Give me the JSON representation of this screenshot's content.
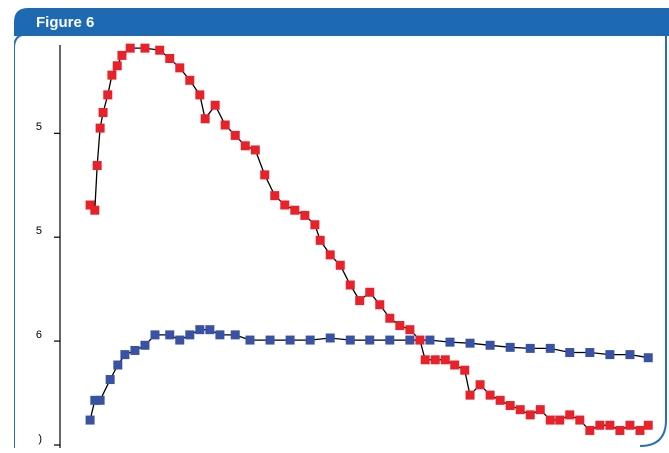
{
  "header": {
    "title": "Figure 6"
  },
  "chart_data": {
    "type": "scatter",
    "xlim": [
      0,
      100
    ],
    "ylim": [
      0,
      3.85
    ],
    "yticks": [
      {
        "value": 0,
        "label": ")"
      },
      {
        "value": 1,
        "label": "6"
      },
      {
        "value": 2,
        "label": "5"
      },
      {
        "value": 3,
        "label": "5"
      }
    ],
    "series": [
      {
        "color": "#e8212a",
        "x": [
          5.1,
          5.9,
          6.3,
          6.8,
          7.3,
          8.1,
          8.8,
          9.7,
          10.5,
          11.9,
          14.4,
          16.9,
          18.6,
          20.3,
          22.0,
          23.7,
          24.6,
          26.3,
          28.0,
          29.7,
          31.4,
          33.1,
          34.7,
          36.4,
          38.1,
          39.8,
          41.5,
          43.2,
          44.1,
          45.8,
          47.5,
          49.2,
          50.8,
          52.5,
          54.2,
          55.9,
          57.6,
          59.3,
          61.0,
          61.9,
          63.6,
          65.3,
          66.9,
          68.6,
          69.5,
          71.2,
          72.9,
          74.6,
          76.3,
          78.0,
          79.7,
          81.4,
          83.1,
          84.7,
          86.4,
          88.1,
          89.8,
          91.5,
          93.2,
          94.9,
          96.6,
          98.3,
          99.7
        ],
        "values": [
          2.31,
          2.26,
          2.69,
          3.05,
          3.2,
          3.37,
          3.56,
          3.65,
          3.75,
          3.82,
          3.82,
          3.8,
          3.72,
          3.63,
          3.51,
          3.37,
          3.14,
          3.27,
          3.08,
          2.98,
          2.88,
          2.84,
          2.6,
          2.4,
          2.31,
          2.26,
          2.21,
          2.12,
          1.97,
          1.83,
          1.73,
          1.54,
          1.39,
          1.47,
          1.35,
          1.22,
          1.15,
          1.11,
          1.01,
          0.82,
          0.82,
          0.82,
          0.77,
          0.72,
          0.48,
          0.58,
          0.48,
          0.43,
          0.38,
          0.34,
          0.29,
          0.34,
          0.24,
          0.24,
          0.29,
          0.24,
          0.14,
          0.19,
          0.19,
          0.14,
          0.19,
          0.14,
          0.19
        ]
      },
      {
        "color": "#3a52a4",
        "x": [
          5.1,
          5.9,
          6.8,
          8.5,
          9.8,
          11.0,
          12.7,
          14.4,
          16.1,
          18.6,
          20.3,
          22.0,
          23.7,
          25.4,
          27.1,
          29.7,
          32.2,
          35.6,
          39.0,
          42.4,
          45.8,
          49.2,
          52.5,
          55.9,
          59.3,
          62.7,
          66.1,
          69.5,
          72.9,
          76.3,
          79.7,
          83.1,
          86.4,
          89.8,
          93.2,
          96.6,
          99.7
        ],
        "values": [
          0.24,
          0.43,
          0.43,
          0.63,
          0.77,
          0.87,
          0.91,
          0.96,
          1.06,
          1.06,
          1.01,
          1.06,
          1.11,
          1.11,
          1.06,
          1.06,
          1.01,
          1.01,
          1.01,
          1.01,
          1.03,
          1.01,
          1.01,
          1.01,
          1.01,
          1.01,
          0.99,
          0.98,
          0.96,
          0.94,
          0.93,
          0.93,
          0.89,
          0.89,
          0.87,
          0.87,
          0.84
        ]
      }
    ]
  }
}
